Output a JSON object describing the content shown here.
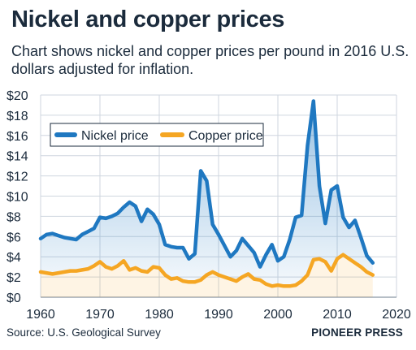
{
  "header": {
    "title": "Nickel and copper prices",
    "subtitle": "Chart shows nickel and copper prices per pound in 2016 U.S. dollars adjusted for inflation."
  },
  "footer": {
    "source": "Source: U.S. Geological Survey",
    "credit": "PIONEER PRESS"
  },
  "colors": {
    "nickel": "#1f78c1",
    "copper": "#f5a623",
    "grid": "#cfd6df",
    "text": "#1b2b3c"
  },
  "chart_data": {
    "type": "line",
    "title": "Nickel and copper prices",
    "xlabel": "",
    "ylabel": "",
    "xlim": [
      1960,
      2020
    ],
    "ylim": [
      0,
      20
    ],
    "x_ticks": [
      1960,
      1970,
      1980,
      1990,
      2000,
      2010,
      2020
    ],
    "y_ticks": [
      0,
      2,
      4,
      6,
      8,
      10,
      12,
      14,
      16,
      18,
      20
    ],
    "x_tick_labels": [
      "1960",
      "1970",
      "1980",
      "1990",
      "2000",
      "2010",
      "2020"
    ],
    "y_tick_labels": [
      "$0",
      "$2",
      "$4",
      "$6",
      "$8",
      "$10",
      "$12",
      "$14",
      "$16",
      "$18",
      "$20"
    ],
    "grid": true,
    "legend_placement": "top-left",
    "x": [
      1960,
      1961,
      1962,
      1963,
      1964,
      1965,
      1966,
      1967,
      1968,
      1969,
      1970,
      1971,
      1972,
      1973,
      1974,
      1975,
      1976,
      1977,
      1978,
      1979,
      1980,
      1981,
      1982,
      1983,
      1984,
      1985,
      1986,
      1987,
      1988,
      1989,
      1990,
      1991,
      1992,
      1993,
      1994,
      1995,
      1996,
      1997,
      1998,
      1999,
      2000,
      2001,
      2002,
      2003,
      2004,
      2005,
      2006,
      2007,
      2008,
      2009,
      2010,
      2011,
      2012,
      2013,
      2014,
      2015,
      2016
    ],
    "series": [
      {
        "name": "Nickel price",
        "values": [
          5.8,
          6.2,
          6.3,
          6.1,
          5.9,
          5.8,
          5.7,
          6.2,
          6.5,
          6.8,
          7.9,
          7.8,
          8.0,
          8.3,
          8.9,
          9.4,
          9.0,
          7.5,
          8.7,
          8.2,
          7.2,
          5.2,
          5.0,
          4.9,
          4.9,
          3.8,
          4.3,
          12.5,
          11.5,
          7.2,
          6.2,
          5.1,
          4.0,
          4.6,
          5.8,
          5.1,
          4.4,
          3.0,
          4.2,
          5.2,
          3.6,
          4.0,
          5.7,
          7.9,
          8.1,
          15.0,
          19.4,
          11.0,
          7.3,
          10.6,
          11.0,
          7.9,
          6.9,
          7.6,
          5.9,
          4.1,
          3.4
        ],
        "color": "#1f78c1"
      },
      {
        "name": "Copper price",
        "values": [
          2.5,
          2.4,
          2.3,
          2.4,
          2.5,
          2.6,
          2.6,
          2.7,
          2.8,
          3.1,
          3.5,
          3.0,
          2.8,
          3.1,
          3.6,
          2.7,
          2.9,
          2.6,
          2.5,
          3.0,
          2.9,
          2.2,
          1.8,
          1.9,
          1.6,
          1.5,
          1.5,
          1.7,
          2.2,
          2.5,
          2.2,
          2.0,
          1.8,
          1.6,
          2.0,
          2.3,
          1.8,
          1.7,
          1.3,
          1.1,
          1.2,
          1.1,
          1.1,
          1.2,
          1.6,
          2.2,
          3.7,
          3.8,
          3.5,
          2.6,
          3.8,
          4.2,
          3.8,
          3.4,
          3.0,
          2.5,
          2.2
        ],
        "color": "#f5a623"
      }
    ]
  }
}
